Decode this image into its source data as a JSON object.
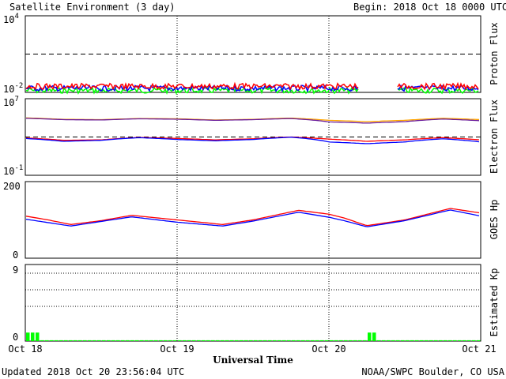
{
  "header": {
    "title": "Satellite Environment (3 day)",
    "begin": "Begin:  2018 Oct 18 0000 UTC"
  },
  "footer": {
    "updated": "Updated 2018 Oct 20 23:56:04 UTC",
    "credit": "NOAA/SWPC Boulder, CO USA"
  },
  "x_axis": {
    "label": "Universal Time",
    "ticks": [
      "Oct 18",
      "Oct 19",
      "Oct 20",
      "Oct 21"
    ]
  },
  "colors": {
    "proton_red": "#ff0000",
    "proton_blue": "#0000ff",
    "proton_green": "#00ff00",
    "electron_orange": "#ffa500",
    "electron_purple": "#6a1b9a",
    "electron_red": "#ff0000",
    "electron_blue": "#0000ff",
    "goes_red": "#ff0000",
    "goes_blue": "#0000ff",
    "kp_green": "#00ff00"
  },
  "chart_data": [
    {
      "type": "line",
      "panel": "proton",
      "ylabel": "Proton Flux",
      "yscale": "log",
      "ylim": [
        0.01,
        10000
      ],
      "yticks": [
        {
          "base": "10",
          "exp": "-2"
        },
        {
          "base": "10",
          "exp": "4"
        }
      ],
      "threshold": 10,
      "x": [
        0,
        3
      ],
      "gap_days": [
        2.2,
        2.45
      ],
      "series": [
        {
          "color_key": "proton_red",
          "level": 0.03
        },
        {
          "color_key": "proton_blue",
          "level": 0.021
        },
        {
          "color_key": "proton_green",
          "level": 0.014
        }
      ]
    },
    {
      "type": "line",
      "panel": "electron",
      "ylabel": "Electron Flux",
      "yscale": "log",
      "ylim": [
        0.1,
        10000000
      ],
      "yticks": [
        {
          "base": "10",
          "exp": "-1"
        },
        {
          "base": "10",
          "exp": "7"
        }
      ],
      "threshold": 1000,
      "x_days": [
        0,
        0.25,
        0.5,
        0.75,
        1.0,
        1.25,
        1.5,
        1.75,
        2.0,
        2.25,
        2.5,
        2.75,
        3.0
      ],
      "series": [
        {
          "color_key": "electron_orange",
          "values": [
            100000,
            70000,
            65000,
            85000,
            80000,
            60000,
            70000,
            95000,
            55000,
            40000,
            55000,
            90000,
            65000
          ]
        },
        {
          "color_key": "electron_purple",
          "values": [
            90000,
            65000,
            60000,
            80000,
            72000,
            55000,
            65000,
            85000,
            38000,
            28000,
            40000,
            75000,
            50000
          ]
        },
        {
          "color_key": "electron_red",
          "values": [
            800,
            450,
            500,
            900,
            700,
            500,
            650,
            1000,
            600,
            350,
            500,
            850,
            500
          ]
        },
        {
          "color_key": "electron_blue",
          "values": [
            700,
            350,
            450,
            850,
            550,
            400,
            550,
            950,
            300,
            200,
            300,
            650,
            300
          ]
        }
      ]
    },
    {
      "type": "line",
      "panel": "goes",
      "ylabel": "GOES Hp",
      "ylim": [
        0,
        200
      ],
      "yticks": [
        0,
        200
      ],
      "x_days": [
        0,
        0.15,
        0.3,
        0.5,
        0.7,
        1.0,
        1.3,
        1.5,
        1.8,
        2.0,
        2.1,
        2.25,
        2.5,
        2.8,
        3.0
      ],
      "series": [
        {
          "color_key": "goes_red",
          "values": [
            110,
            100,
            88,
            98,
            112,
            100,
            88,
            100,
            125,
            115,
            105,
            85,
            100,
            130,
            118
          ]
        },
        {
          "color_key": "goes_blue",
          "values": [
            102,
            93,
            84,
            96,
            108,
            94,
            84,
            97,
            120,
            107,
            98,
            82,
            98,
            126,
            110
          ]
        }
      ]
    },
    {
      "type": "bar",
      "panel": "kp",
      "ylabel": "Estimated Kp",
      "ylim": [
        0,
        9
      ],
      "yticks": [
        0,
        9
      ],
      "bar_width_days": 0.125,
      "values": [
        1,
        1,
        1,
        0.1,
        0.1,
        0.1,
        0.1,
        0.1,
        0.1,
        0.1,
        0.1,
        0.1,
        0.1,
        0.1,
        0.1,
        0.1,
        0.1,
        0.1,
        0.1,
        0.1,
        0.1,
        0.1,
        0.1,
        0.1,
        0.1,
        0.1,
        0.1,
        0.1,
        0.1,
        0.1,
        0.1,
        0.1,
        0.1,
        0.1,
        0.1,
        0.1,
        0.1,
        0.1,
        0.1,
        0.1,
        0.1,
        0.1,
        0.1,
        0.1,
        0.1,
        0.1,
        0.1,
        0.1,
        0.1,
        0.1,
        0.1,
        0.1,
        0.1,
        0.1,
        0.1,
        0.1,
        0.1,
        0.1,
        0.1,
        0.1,
        0.1,
        0.1,
        0.1,
        0.1,
        0.1,
        0.1,
        0.1,
        0.1,
        0.1,
        0.1,
        0.1,
        0.1,
        1,
        1,
        0.1,
        0.1,
        0.1,
        0.1,
        0.1,
        0.1,
        0.1,
        0.1,
        0.1,
        0.1,
        0.1,
        0.1,
        0.1,
        0.1,
        0.1,
        0.1,
        0.1,
        0.1,
        0.1,
        0.1,
        0.1,
        0.1
      ]
    }
  ]
}
